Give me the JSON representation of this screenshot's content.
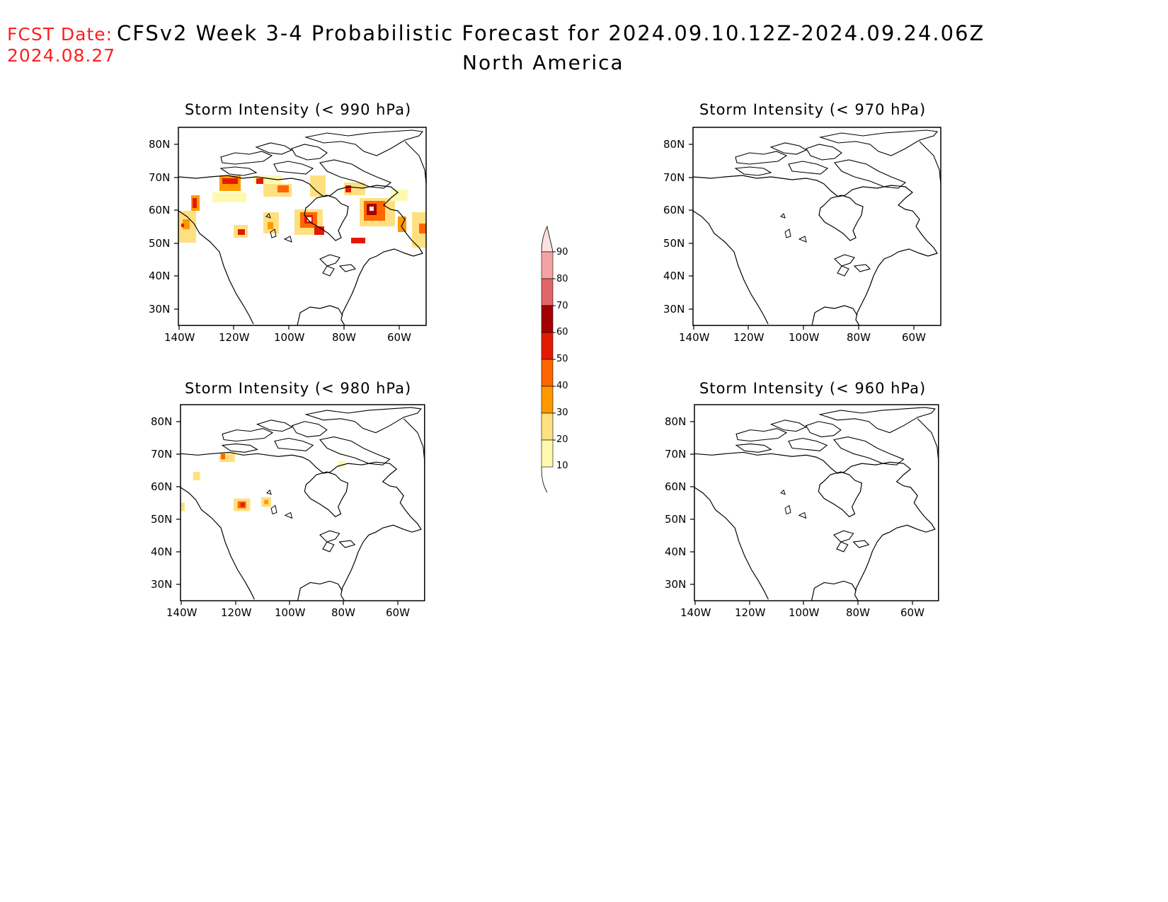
{
  "header": {
    "fcst_label": "FCST Date:",
    "fcst_date": "2024.08.27",
    "title": "CFSv2 Week 3-4 Probabilistic Forecast for 2024.09.10.12Z-2024.09.24.06Z",
    "subtitle": "North America"
  },
  "lat_labels": [
    "80N",
    "70N",
    "60N",
    "50N",
    "40N",
    "30N"
  ],
  "lon_labels": [
    "140W",
    "120W",
    "100W",
    "80W",
    "60W"
  ],
  "panels": [
    {
      "title": "Storm Intensity (< 990 hPa)"
    },
    {
      "title": "Storm Intensity (< 970 hPa)"
    },
    {
      "title": "Storm Intensity (< 980 hPa)"
    },
    {
      "title": "Storm Intensity (< 960 hPa)"
    }
  ],
  "colorbar": {
    "labels": [
      "90",
      "80",
      "70",
      "60",
      "50",
      "40",
      "30",
      "20",
      "10"
    ],
    "colors": [
      "#fde0e0",
      "#f4a3a3",
      "#e06666",
      "#a50000",
      "#e41a00",
      "#ff6600",
      "#ff9900",
      "#ffe080",
      "#fff9b0"
    ]
  },
  "chart_data": {
    "type": "heatmap",
    "title": "CFSv2 Week 3-4 Probabilistic Forecast for 2024.09.10.12Z-2024.09.24.06Z",
    "subtitle": "North America",
    "xlabel": "",
    "ylabel": "",
    "xlim": [
      -140,
      -50
    ],
    "ylim": [
      25,
      85
    ],
    "x_ticks": [
      "140W",
      "120W",
      "100W",
      "80W",
      "60W"
    ],
    "y_ticks": [
      "80N",
      "70N",
      "60N",
      "50N",
      "40N",
      "30N"
    ],
    "levels": [
      10,
      20,
      30,
      40,
      50,
      60,
      70,
      80,
      90
    ],
    "panels": [
      {
        "title": "Storm Intensity (< 990 hPa)",
        "max_probability": 90
      },
      {
        "title": "Storm Intensity (< 970 hPa)",
        "max_probability": 0
      },
      {
        "title": "Storm Intensity (< 980 hPa)",
        "max_probability": 50
      },
      {
        "title": "Storm Intensity (< 960 hPa)",
        "max_probability": 0
      }
    ]
  }
}
